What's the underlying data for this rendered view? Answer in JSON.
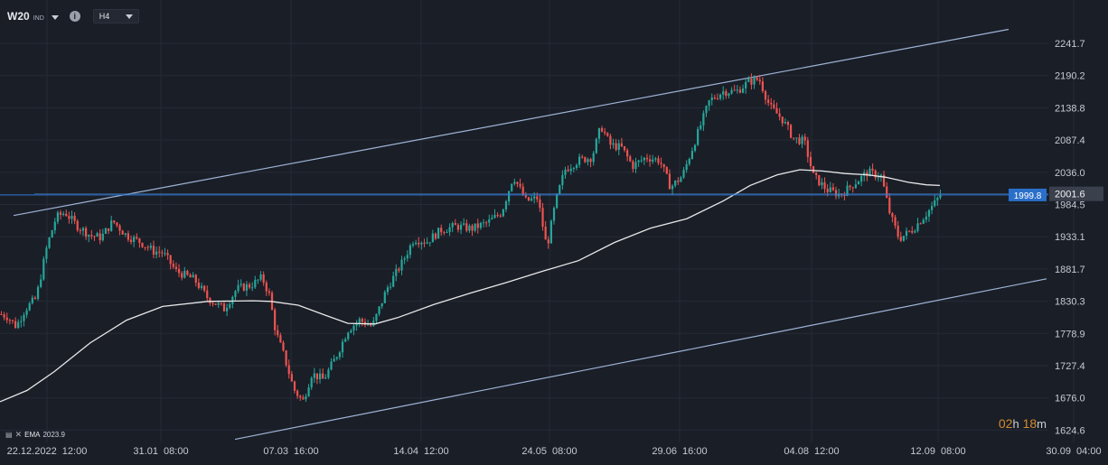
{
  "instrument": {
    "symbol": "W20",
    "class": "IND",
    "info_icon": "info-icon",
    "timeframe": "H4"
  },
  "chart_data": {
    "type": "candlestick",
    "symbol": "W20",
    "timeframe": "H4",
    "x_tick_labels": [
      "22.12.2022  12:00",
      "31.01  08:00",
      "07.03  16:00",
      "14.04  12:00",
      "24.05  08:00",
      "29.06  16:00",
      "04.08  12:00",
      "12.09  08:00",
      "30.09  04:00"
    ],
    "y_tick_labels": [
      "2241.7",
      "2190.2",
      "2138.8",
      "2087.4",
      "2036.0",
      "2001.6",
      "1984.5",
      "1933.1",
      "1881.7",
      "1830.3",
      "1778.9",
      "1727.4",
      "1676.0",
      "1624.6"
    ],
    "ylim": [
      1605,
      2282
    ],
    "current_price": 2001.6,
    "horizontal_line": 1999.8,
    "indicator": {
      "name": "EMA",
      "value": "2023.9"
    },
    "price_path": [
      [
        0,
        1810
      ],
      [
        8,
        1806
      ],
      [
        18,
        1790
      ],
      [
        28,
        1818
      ],
      [
        40,
        1835
      ],
      [
        52,
        1918
      ],
      [
        62,
        1964
      ],
      [
        72,
        1972
      ],
      [
        85,
        1951
      ],
      [
        100,
        1935
      ],
      [
        112,
        1932
      ],
      [
        125,
        1958
      ],
      [
        140,
        1935
      ],
      [
        155,
        1925
      ],
      [
        170,
        1910
      ],
      [
        180,
        1908
      ],
      [
        195,
        1878
      ],
      [
        215,
        1865
      ],
      [
        230,
        1835
      ],
      [
        248,
        1818
      ],
      [
        262,
        1850
      ],
      [
        278,
        1856
      ],
      [
        290,
        1868
      ],
      [
        298,
        1840
      ],
      [
        305,
        1782
      ],
      [
        315,
        1740
      ],
      [
        325,
        1690
      ],
      [
        335,
        1670
      ],
      [
        345,
        1715
      ],
      [
        358,
        1705
      ],
      [
        372,
        1742
      ],
      [
        385,
        1785
      ],
      [
        398,
        1800
      ],
      [
        412,
        1790
      ],
      [
        428,
        1850
      ],
      [
        445,
        1892
      ],
      [
        458,
        1930
      ],
      [
        472,
        1925
      ],
      [
        488,
        1944
      ],
      [
        505,
        1950
      ],
      [
        522,
        1946
      ],
      [
        540,
        1956
      ],
      [
        555,
        1972
      ],
      [
        568,
        2030
      ],
      [
        582,
        1990
      ],
      [
        595,
        1995
      ],
      [
        605,
        1915
      ],
      [
        615,
        1990
      ],
      [
        625,
        2040
      ],
      [
        640,
        2055
      ],
      [
        655,
        2060
      ],
      [
        665,
        2110
      ],
      [
        675,
        2080
      ],
      [
        688,
        2075
      ],
      [
        700,
        2046
      ],
      [
        715,
        2060
      ],
      [
        730,
        2055
      ],
      [
        742,
        2012
      ],
      [
        755,
        2030
      ],
      [
        770,
        2090
      ],
      [
        785,
        2150
      ],
      [
        800,
        2165
      ],
      [
        815,
        2165
      ],
      [
        828,
        2180
      ],
      [
        840,
        2185
      ],
      [
        852,
        2140
      ],
      [
        865,
        2122
      ],
      [
        878,
        2090
      ],
      [
        890,
        2085
      ],
      [
        900,
        2030
      ],
      [
        915,
        2008
      ],
      [
        930,
        2000
      ],
      [
        945,
        2018
      ],
      [
        960,
        2036
      ],
      [
        975,
        2030
      ],
      [
        985,
        1968
      ],
      [
        995,
        1930
      ],
      [
        1010,
        1945
      ],
      [
        1025,
        1970
      ],
      [
        1035,
        1988
      ],
      [
        1041,
        2001.6
      ]
    ],
    "ema_path": [
      [
        0,
        1670
      ],
      [
        30,
        1688
      ],
      [
        60,
        1718
      ],
      [
        100,
        1764
      ],
      [
        140,
        1800
      ],
      [
        180,
        1822
      ],
      [
        230,
        1830
      ],
      [
        280,
        1831
      ],
      [
        300,
        1830
      ],
      [
        330,
        1824
      ],
      [
        360,
        1808
      ],
      [
        385,
        1795
      ],
      [
        415,
        1794
      ],
      [
        440,
        1804
      ],
      [
        480,
        1825
      ],
      [
        520,
        1843
      ],
      [
        560,
        1860
      ],
      [
        600,
        1878
      ],
      [
        640,
        1895
      ],
      [
        680,
        1924
      ],
      [
        720,
        1947
      ],
      [
        760,
        1962
      ],
      [
        800,
        1990
      ],
      [
        830,
        2015
      ],
      [
        860,
        2032
      ],
      [
        885,
        2040
      ],
      [
        910,
        2038
      ],
      [
        935,
        2034
      ],
      [
        960,
        2032
      ],
      [
        980,
        2028
      ],
      [
        1005,
        2020
      ],
      [
        1025,
        2016
      ],
      [
        1040,
        2015
      ]
    ],
    "channel": {
      "upper": [
        [
          15,
          1967
        ],
        [
          1116,
          2264
        ]
      ],
      "lower": [
        [
          260,
          1610
        ],
        [
          1158,
          1866
        ]
      ]
    },
    "colors": {
      "up": "#26a69a",
      "down": "#ef5350",
      "ema": "#e8e8e8",
      "channel": "#9fb4d6",
      "hline": "#2f7bdc",
      "price_label": "#2a6fc9",
      "countdown": "#d38a2f"
    }
  },
  "countdown": {
    "h": "02",
    "h_unit": "h",
    "m": "18",
    "m_unit": "m"
  }
}
